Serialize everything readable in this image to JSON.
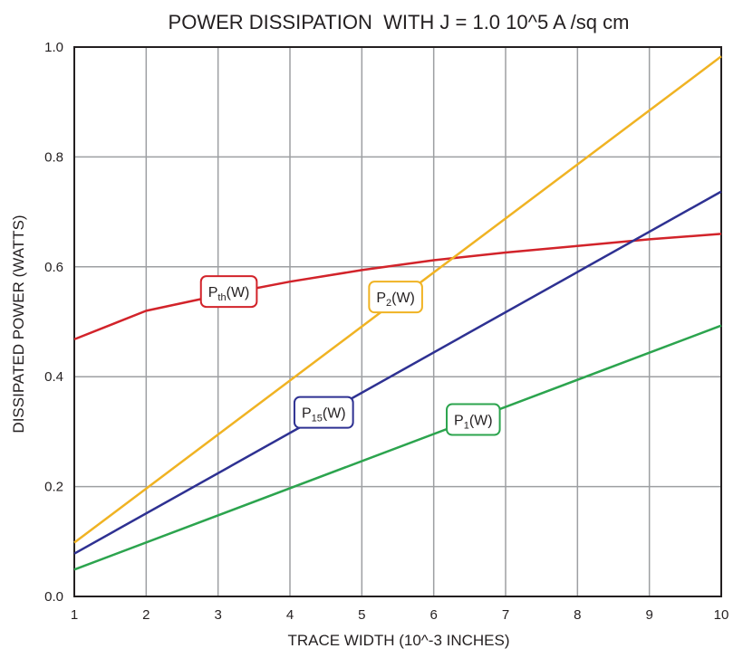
{
  "chart_data": {
    "type": "line",
    "title": "POWER DISSIPATION  WITH J = 1.0 10^5 A /sq cm",
    "xlabel": "TRACE WIDTH (10^-3 INCHES)",
    "ylabel": "DISSIPATED POWER (WATTS)",
    "xlim": [
      1,
      10
    ],
    "ylim": [
      0,
      1.0
    ],
    "xticks": [
      "1",
      "2",
      "3",
      "4",
      "5",
      "6",
      "7",
      "8",
      "9",
      "10"
    ],
    "yticks": [
      "0.0",
      "0.2",
      "0.4",
      "0.6",
      "0.8",
      "1.0"
    ],
    "grid": true,
    "legend": "inline labels",
    "series": [
      {
        "name": "Pth(W)",
        "label": {
          "main": "P",
          "sub": "th",
          "suffix": "(W)"
        },
        "color": "#d2232a",
        "x": [
          1,
          2,
          3,
          4,
          5,
          6,
          7,
          8,
          9,
          10
        ],
        "y": [
          0.468,
          0.52,
          0.548,
          0.573,
          0.594,
          0.612,
          0.626,
          0.638,
          0.65,
          0.66
        ],
        "label_at": [
          3.15,
          0.555
        ]
      },
      {
        "name": "P2(W)",
        "label": {
          "main": "P",
          "sub": "2",
          "suffix": "(W)"
        },
        "color": "#f0b323",
        "x": [
          1,
          10
        ],
        "y": [
          0.098,
          0.983
        ],
        "label_at": [
          5.47,
          0.545
        ]
      },
      {
        "name": "P15(W)",
        "label": {
          "main": "P",
          "sub": "15",
          "suffix": "(W)"
        },
        "color": "#2e3192",
        "x": [
          1,
          10
        ],
        "y": [
          0.078,
          0.737
        ],
        "label_at": [
          4.47,
          0.335
        ]
      },
      {
        "name": "P1(W)",
        "label": {
          "main": "P",
          "sub": "1",
          "suffix": "(W)"
        },
        "color": "#2ca44e",
        "x": [
          1,
          10
        ],
        "y": [
          0.049,
          0.493
        ],
        "label_at": [
          6.55,
          0.322
        ]
      }
    ]
  }
}
